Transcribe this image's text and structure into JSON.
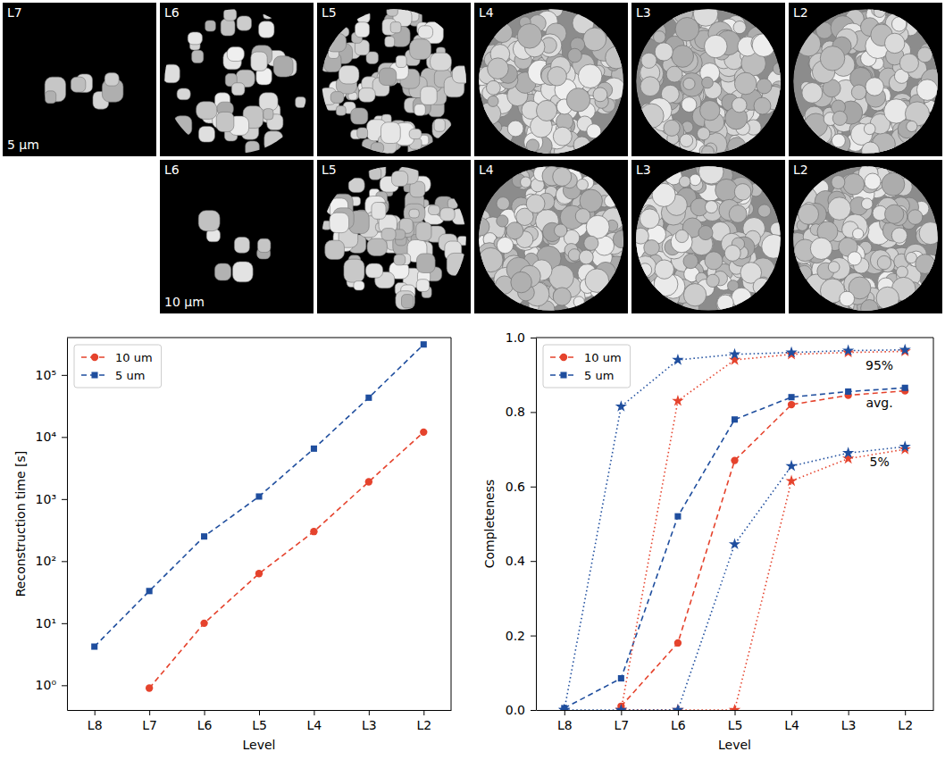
{
  "image_grid": {
    "rows": [
      {
        "scale_bar": "5 µm",
        "panels": [
          "L7",
          "L6",
          "L5",
          "L4",
          "L3",
          "L2"
        ]
      },
      {
        "scale_bar": "10 µm",
        "panels": [
          "L6",
          "L5",
          "L4",
          "L3",
          "L2"
        ]
      }
    ]
  },
  "chart_data": [
    {
      "type": "line",
      "log": "y",
      "legend": "upper left",
      "x_label": "Level",
      "y_label": "Reconstruction time [s]",
      "categories": [
        "L8",
        "L7",
        "L6",
        "L5",
        "L4",
        "L3",
        "L2"
      ],
      "ylim": [
        0.4,
        400000
      ],
      "yticks": [
        {
          "value": 1,
          "label": "10⁰"
        },
        {
          "value": 10,
          "label": "10¹"
        },
        {
          "value": 100,
          "label": "10²"
        },
        {
          "value": 1000,
          "label": "10³"
        },
        {
          "value": 10000,
          "label": "10⁴"
        },
        {
          "value": 100000,
          "label": "10⁵"
        }
      ],
      "series": [
        {
          "name": "10 um",
          "color": "#e5432d",
          "marker": "circle",
          "line_style": "dashed",
          "values": [
            null,
            0.9,
            10,
            63,
            300,
            1900,
            12000
          ]
        },
        {
          "name": "5 um",
          "color": "#1f4e9e",
          "marker": "square",
          "line_style": "dashed",
          "values": [
            4.2,
            33,
            250,
            1100,
            6500,
            43000,
            310000
          ]
        }
      ]
    },
    {
      "type": "line",
      "legend": "upper left",
      "x_label": "Level",
      "y_label": "Completeness",
      "categories": [
        "L8",
        "L7",
        "L6",
        "L5",
        "L4",
        "L3",
        "L2"
      ],
      "ylim": [
        0,
        1
      ],
      "yticks": [
        {
          "value": 0,
          "label": "0.0"
        },
        {
          "value": 0.2,
          "label": "0.2"
        },
        {
          "value": 0.4,
          "label": "0.4"
        },
        {
          "value": 0.6,
          "label": "0.6"
        },
        {
          "value": 0.8,
          "label": "0.8"
        },
        {
          "value": 1,
          "label": "1.0"
        }
      ],
      "series": [
        {
          "name": "10 um",
          "color": "#e5432d",
          "marker": "circle",
          "line_style": "dashed",
          "values": [
            null,
            0.01,
            0.18,
            0.67,
            0.82,
            0.845,
            0.857
          ]
        },
        {
          "name": "5 um",
          "color": "#1f4e9e",
          "marker": "square",
          "line_style": "dashed",
          "label": "avg.",
          "values": [
            0.005,
            0.085,
            0.52,
            0.78,
            0.84,
            0.855,
            0.865
          ]
        },
        {
          "color": "#e5432d",
          "marker": "star",
          "line_style": "dotted",
          "values": [
            null,
            0.0,
            0.83,
            0.94,
            0.955,
            0.96,
            0.963
          ]
        },
        {
          "color": "#1f4e9e",
          "marker": "star",
          "line_style": "dotted",
          "label": "95%",
          "values": [
            0.0,
            0.815,
            0.94,
            0.955,
            0.96,
            0.965,
            0.967
          ]
        },
        {
          "color": "#e5432d",
          "marker": "star",
          "line_style": "dotted",
          "values": [
            null,
            0.0,
            0.0,
            0.0,
            0.615,
            0.675,
            0.7
          ]
        },
        {
          "color": "#1f4e9e",
          "marker": "star",
          "line_style": "dotted",
          "label": "5%",
          "values": [
            0.0,
            0.0,
            0.0,
            0.445,
            0.655,
            0.69,
            0.707
          ]
        }
      ]
    }
  ]
}
